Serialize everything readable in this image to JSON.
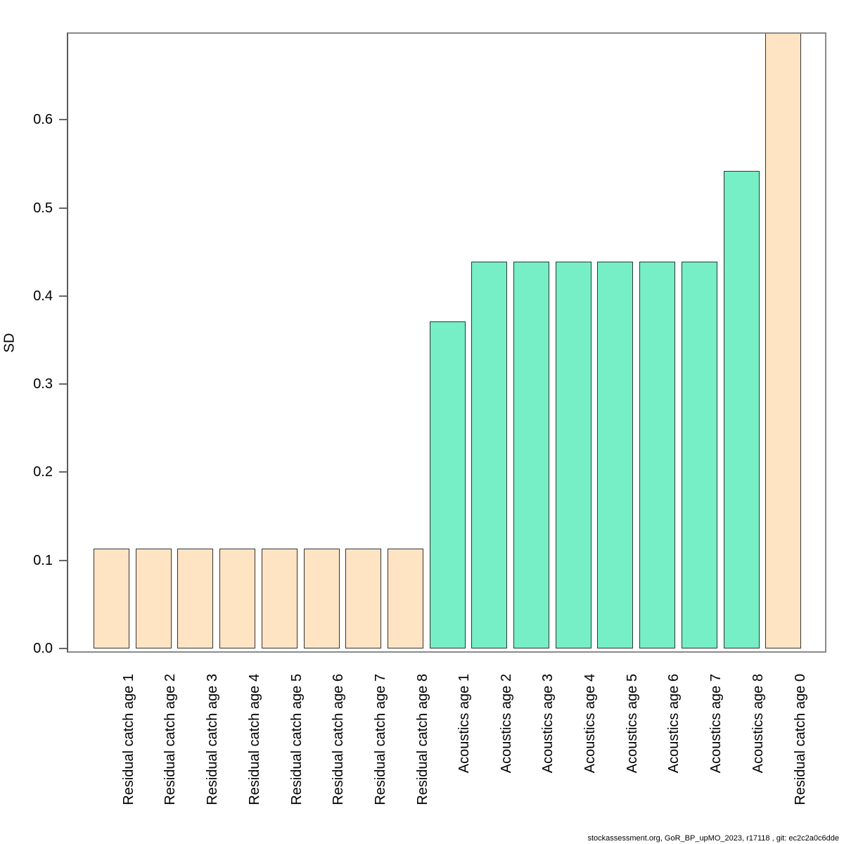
{
  "chart_data": {
    "type": "bar",
    "title": "",
    "xlabel": "",
    "ylabel": "SD",
    "categories": [
      "Residual catch age 1",
      "Residual catch age 2",
      "Residual catch age 3",
      "Residual catch age 4",
      "Residual catch age 5",
      "Residual catch age 6",
      "Residual catch age 7",
      "Residual catch age 8",
      "Acoustics age 1",
      "Acoustics age 2",
      "Acoustics age 3",
      "Acoustics age 4",
      "Acoustics age 5",
      "Acoustics age 6",
      "Acoustics age 7",
      "Acoustics age 8",
      "Residual catch age 0"
    ],
    "values": [
      0.113,
      0.113,
      0.113,
      0.113,
      0.113,
      0.113,
      0.113,
      0.113,
      0.371,
      0.439,
      0.439,
      0.439,
      0.439,
      0.439,
      0.439,
      0.542,
      0.72
    ],
    "bar_colors": [
      "#FFE4C4",
      "#FFE4C4",
      "#FFE4C4",
      "#FFE4C4",
      "#FFE4C4",
      "#FFE4C4",
      "#FFE4C4",
      "#FFE4C4",
      "#76EEC6",
      "#76EEC6",
      "#76EEC6",
      "#76EEC6",
      "#76EEC6",
      "#76EEC6",
      "#76EEC6",
      "#76EEC6",
      "#FFE4C4"
    ],
    "ylim": [
      0,
      0.7
    ],
    "yticks": [
      0.0,
      0.1,
      0.2,
      0.3,
      0.4,
      0.5,
      0.6
    ],
    "ytick_labels": [
      "0.0",
      "0.1",
      "0.2",
      "0.3",
      "0.4",
      "0.5",
      "0.6"
    ],
    "grid": false,
    "legend": "none",
    "note": "Last bar (Residual catch age 0) exceeds the y-axis range and is clipped at the top of the plot box"
  },
  "footer": {
    "caption": "stockassessment.org, GoR_BP_upMO_2023, r17118 , git: ec2c2a0c6dde"
  },
  "palette": {
    "residual_catch_fill": "#FFE4C4",
    "acoustics_fill": "#76EEC6",
    "bar_border": "#333333",
    "box_border": "#8a8a8a",
    "tick_mark": "#666666",
    "text": "#000000",
    "background": "#ffffff"
  }
}
